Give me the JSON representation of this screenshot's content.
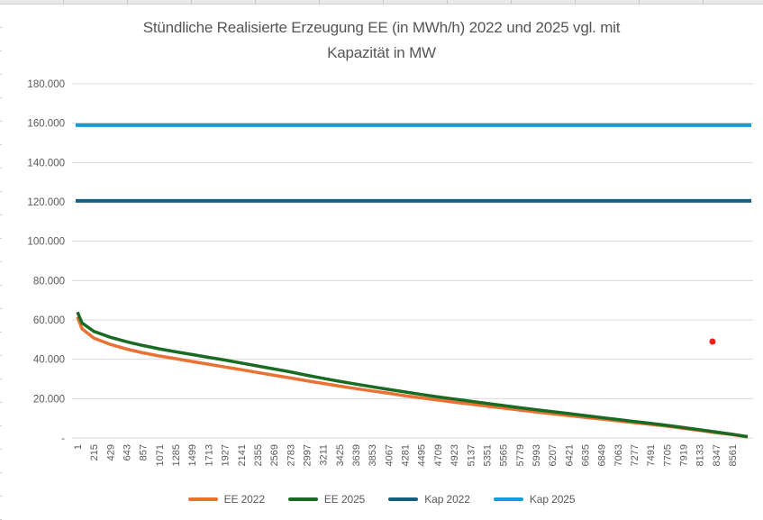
{
  "title": {
    "text": "Stündliche Realisierte Erzeugung EE (in MWh/h) 2022 und 2025 vgl. mit Kapazität in MW",
    "line1": "Stündliche Realisierte Erzeugung EE (in MWh/h) 2022 und 2025 vgl. mit",
    "line2": "Kapazität in MW"
  },
  "colors": {
    "ee2022": "#E97132",
    "ee2025": "#196B24",
    "kap2022": "#156082",
    "kap2025": "#0F9ED5",
    "outlier": "#E8231B",
    "gridline": "#D9D9D9",
    "axis_text": "#595959",
    "title_text": "#555555"
  },
  "chart_data": {
    "type": "line",
    "title": "Stündliche Realisierte Erzeugung EE (in MWh/h) 2022 und 2025 vgl. mit Kapazität in MW",
    "xlabel": "",
    "ylabel": "",
    "grid": true,
    "legend_position": "bottom",
    "x_axis": {
      "min": 1,
      "max": 8760,
      "tick_labels": [
        "1",
        "215",
        "429",
        "643",
        "857",
        "1071",
        "1285",
        "1499",
        "1713",
        "1927",
        "2141",
        "2355",
        "2569",
        "2783",
        "2997",
        "3211",
        "3425",
        "3639",
        "3853",
        "4067",
        "4281",
        "4495",
        "4709",
        "4923",
        "5137",
        "5351",
        "5565",
        "5779",
        "5993",
        "6207",
        "6421",
        "6635",
        "6849",
        "7063",
        "7277",
        "7491",
        "7705",
        "7919",
        "8133",
        "8347",
        "8561"
      ],
      "tick_values": [
        1,
        215,
        429,
        643,
        857,
        1071,
        1285,
        1499,
        1713,
        1927,
        2141,
        2355,
        2569,
        2783,
        2997,
        3211,
        3425,
        3639,
        3853,
        4067,
        4281,
        4495,
        4709,
        4923,
        5137,
        5351,
        5565,
        5779,
        5993,
        6207,
        6421,
        6635,
        6849,
        7063,
        7277,
        7491,
        7705,
        7919,
        8133,
        8347,
        8561
      ]
    },
    "y_axis": {
      "min": 0,
      "max": 180000,
      "tick_step": 20000,
      "tick_values": [
        180000,
        160000,
        140000,
        120000,
        100000,
        80000,
        60000,
        40000,
        20000,
        0
      ],
      "tick_labels": [
        "180.000",
        "160.000",
        "140.000",
        "120.000",
        "100.000",
        "80.000",
        "60.000",
        "40.000",
        "20.000",
        "-"
      ]
    },
    "series": [
      {
        "name": "EE 2022",
        "color": "#E97132",
        "width": 3.5,
        "points": [
          [
            1,
            61500
          ],
          [
            60,
            55500
          ],
          [
            215,
            50800
          ],
          [
            429,
            47600
          ],
          [
            643,
            45200
          ],
          [
            857,
            43300
          ],
          [
            1071,
            41700
          ],
          [
            1285,
            40300
          ],
          [
            1499,
            38900
          ],
          [
            1713,
            37500
          ],
          [
            1927,
            36100
          ],
          [
            2141,
            34700
          ],
          [
            2355,
            33300
          ],
          [
            2569,
            31900
          ],
          [
            2783,
            30500
          ],
          [
            2997,
            29100
          ],
          [
            3211,
            27700
          ],
          [
            3425,
            26400
          ],
          [
            3639,
            25100
          ],
          [
            3853,
            23900
          ],
          [
            4067,
            22700
          ],
          [
            4281,
            21500
          ],
          [
            4495,
            20400
          ],
          [
            4709,
            19300
          ],
          [
            4923,
            18200
          ],
          [
            5137,
            17200
          ],
          [
            5351,
            16200
          ],
          [
            5565,
            15200
          ],
          [
            5779,
            14200
          ],
          [
            5993,
            13200
          ],
          [
            6207,
            12300
          ],
          [
            6421,
            11400
          ],
          [
            6635,
            10500
          ],
          [
            6849,
            9600
          ],
          [
            7063,
            8700
          ],
          [
            7277,
            7800
          ],
          [
            7491,
            6900
          ],
          [
            7705,
            6000
          ],
          [
            7919,
            4900
          ],
          [
            8133,
            3800
          ],
          [
            8347,
            2700
          ],
          [
            8561,
            1700
          ],
          [
            8660,
            1100
          ],
          [
            8760,
            500
          ]
        ]
      },
      {
        "name": "EE 2025",
        "color": "#196B24",
        "width": 3.5,
        "points": [
          [
            1,
            64000
          ],
          [
            60,
            58500
          ],
          [
            215,
            54200
          ],
          [
            429,
            51200
          ],
          [
            643,
            48900
          ],
          [
            857,
            47000
          ],
          [
            1071,
            45300
          ],
          [
            1285,
            43800
          ],
          [
            1499,
            42400
          ],
          [
            1713,
            41000
          ],
          [
            1927,
            39600
          ],
          [
            2141,
            38100
          ],
          [
            2355,
            36600
          ],
          [
            2569,
            35100
          ],
          [
            2783,
            33600
          ],
          [
            2997,
            31900
          ],
          [
            3211,
            30300
          ],
          [
            3425,
            28800
          ],
          [
            3639,
            27400
          ],
          [
            3853,
            26000
          ],
          [
            4067,
            24700
          ],
          [
            4281,
            23400
          ],
          [
            4495,
            22100
          ],
          [
            4709,
            20900
          ],
          [
            4923,
            19800
          ],
          [
            5137,
            18700
          ],
          [
            5351,
            17600
          ],
          [
            5565,
            16500
          ],
          [
            5779,
            15400
          ],
          [
            5993,
            14400
          ],
          [
            6207,
            13400
          ],
          [
            6421,
            12400
          ],
          [
            6635,
            11400
          ],
          [
            6849,
            10400
          ],
          [
            7063,
            9400
          ],
          [
            7277,
            8400
          ],
          [
            7491,
            7400
          ],
          [
            7705,
            6400
          ],
          [
            7919,
            5300
          ],
          [
            8133,
            4200
          ],
          [
            8347,
            3000
          ],
          [
            8561,
            1900
          ],
          [
            8660,
            1300
          ],
          [
            8760,
            700
          ]
        ]
      },
      {
        "name": "Kap 2022",
        "color": "#156082",
        "width": 4,
        "constant": 120500
      },
      {
        "name": "Kap 2025",
        "color": "#0F9ED5",
        "width": 4,
        "constant": 159000
      },
      {
        "name": "outlier-point",
        "color": "#E8231B",
        "marker": {
          "x": 8300,
          "y": 49000
        },
        "in_legend": false
      }
    ],
    "legend": [
      {
        "label": "EE 2022",
        "color": "#E97132"
      },
      {
        "label": "EE 2025",
        "color": "#196B24"
      },
      {
        "label": "Kap 2022",
        "color": "#156082"
      },
      {
        "label": "Kap 2025",
        "color": "#0F9ED5"
      }
    ]
  }
}
